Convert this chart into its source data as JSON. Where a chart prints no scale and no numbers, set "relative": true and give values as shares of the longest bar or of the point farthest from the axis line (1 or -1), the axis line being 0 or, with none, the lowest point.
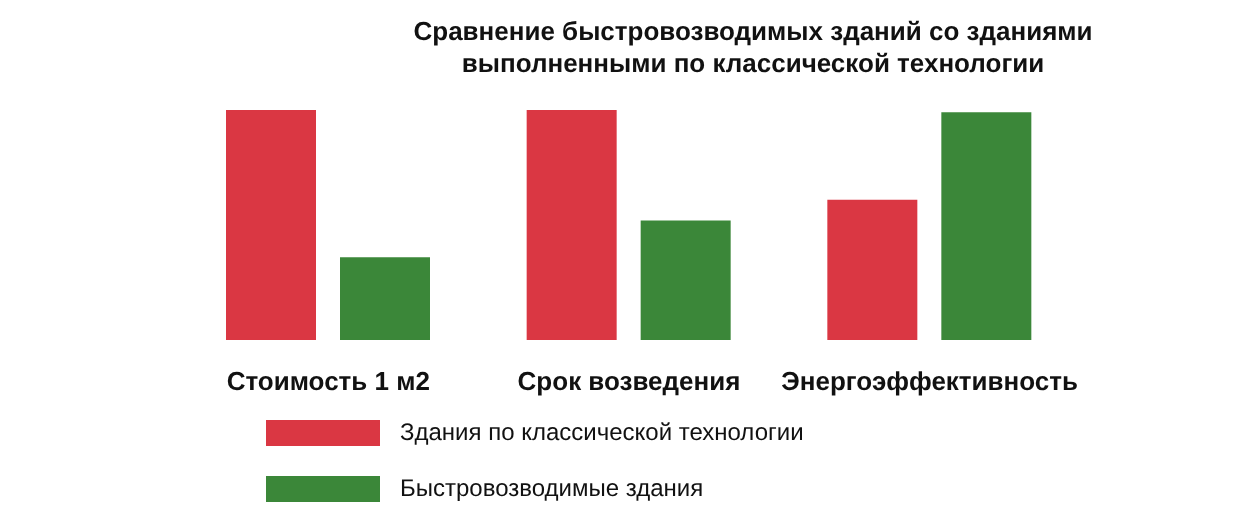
{
  "chart_data": {
    "type": "bar",
    "title": "Сравнение быстровозводимых зданий со зданиями\nвыполненными по классической технологии",
    "relative": true,
    "categories": [
      "Стоимость 1 м2",
      "Срок возведения",
      "Энергоэффективность"
    ],
    "series": [
      {
        "name": "Здания по классической технологии",
        "color": "#da3743",
        "values": [
          1,
          1,
          0.61
        ]
      },
      {
        "name": "Быстровозводимые здания",
        "color": "#3b8739",
        "values": [
          0.36,
          0.52,
          0.99
        ]
      }
    ],
    "legend": "bottom",
    "grid": false
  }
}
